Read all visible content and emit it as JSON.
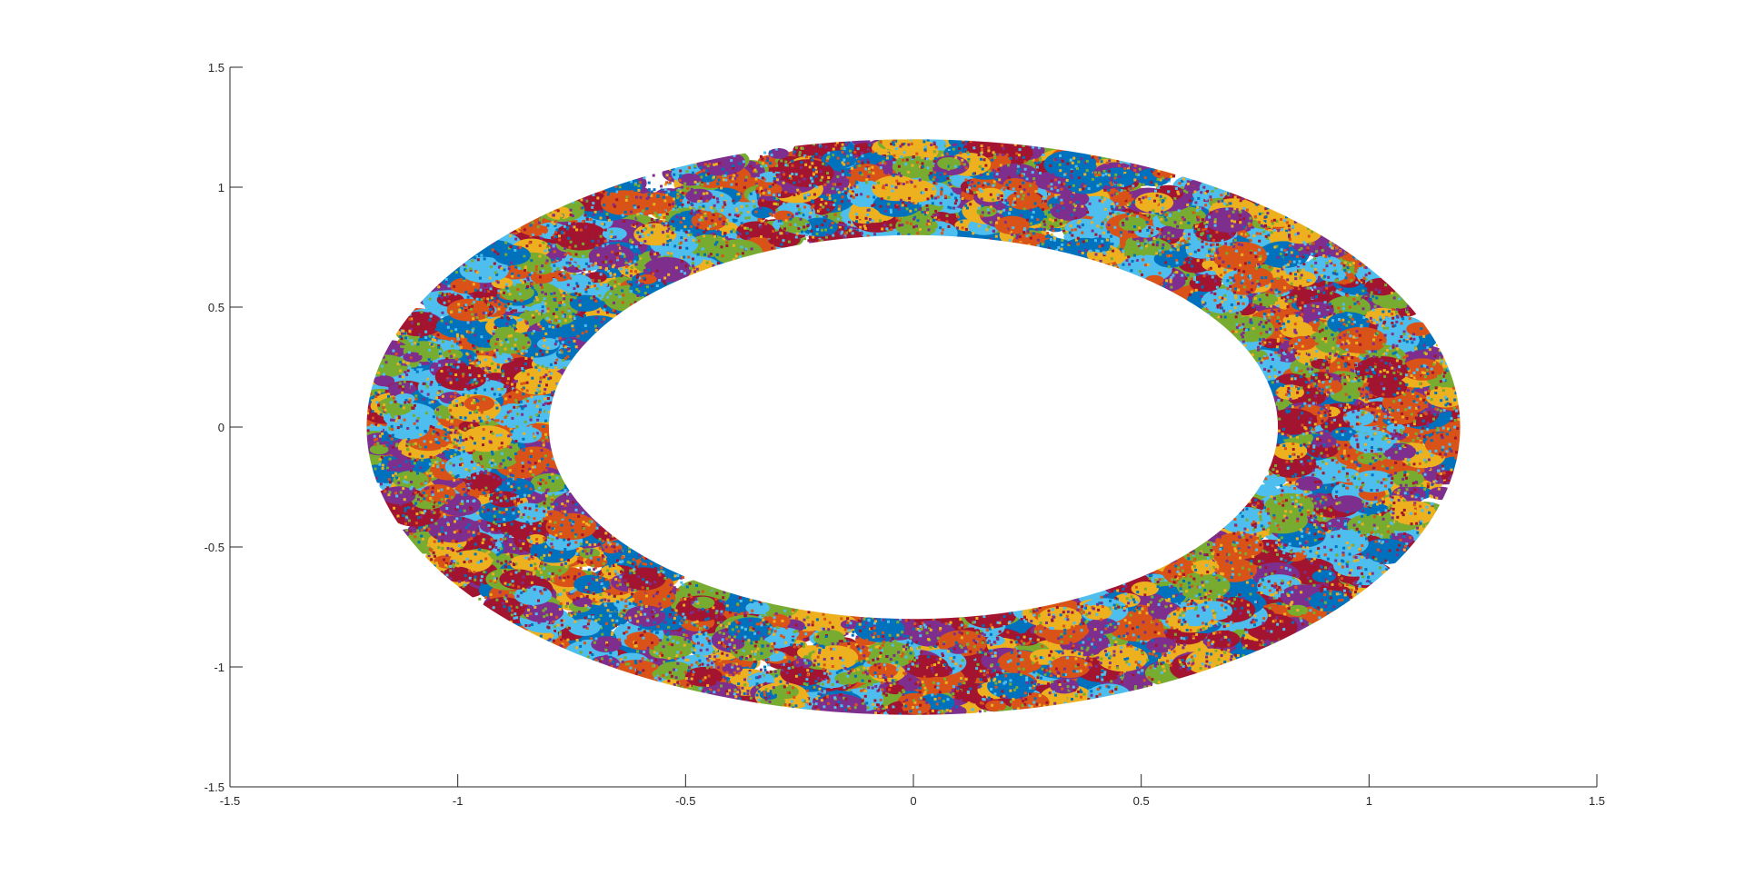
{
  "chart_data": {
    "type": "scatter",
    "title": "",
    "xlabel": "",
    "ylabel": "",
    "xlim": [
      -1.5,
      1.5
    ],
    "ylim": [
      -1.5,
      1.5
    ],
    "x_ticks": [
      "-1.5",
      "-1",
      "-0.5",
      "0",
      "0.5",
      "1",
      "1.5"
    ],
    "y_ticks": [
      "-1.5",
      "-1",
      "-0.5",
      "0",
      "0.5",
      "1",
      "1.5"
    ],
    "grid": false,
    "legend": "none",
    "region": {
      "shape": "annulus",
      "center": [
        0,
        0
      ],
      "inner_radius": 0.8,
      "outer_radius": 1.2,
      "gap_angles_deg": [
        90,
        270
      ]
    },
    "series_colors": [
      "#0072BD",
      "#D95319",
      "#EDB120",
      "#7E2F8E",
      "#77AC30",
      "#4DBEEE",
      "#A2142F"
    ],
    "axis_color": "#262626"
  }
}
